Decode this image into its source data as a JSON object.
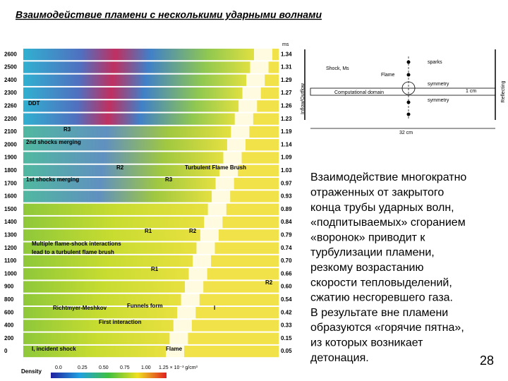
{
  "title": "Взаимодействие пламени с несколькими ударными волнами",
  "figure": {
    "rows": [
      "2600",
      "2500",
      "2400",
      "2300",
      "2260",
      "2200",
      "2100",
      "2000",
      "1900",
      "1800",
      "1700",
      "1600",
      "1500",
      "1400",
      "1300",
      "1200",
      "1100",
      "1000",
      "900",
      "800",
      "600",
      "400",
      "200",
      "0"
    ],
    "time_unit": "ms",
    "times": [
      "1.34",
      "1.31",
      "1.29",
      "1.27",
      "1.26",
      "1.23",
      "1.19",
      "1.14",
      "1.09",
      "1.03",
      "0.97",
      "0.93",
      "0.89",
      "0.84",
      "0.79",
      "0.74",
      "0.70",
      "0.66",
      "0.60",
      "0.54",
      "0.42",
      "0.33",
      "0.15",
      "0.05"
    ],
    "annotations": [
      "DDT",
      "R3",
      "2nd shocks merging",
      "R2",
      "Turbulent Flame Brush",
      "1st shocks merging",
      "R3",
      "R1",
      "R2",
      "Multiple flame-shock interactions",
      "lead to a turbulent flame brush",
      "R1",
      "R2",
      "Richtmyer-Meshkov",
      "Funnels form",
      "I",
      "First interaction",
      "I, incident shock",
      "Flame"
    ],
    "colorbar": {
      "label": "Density",
      "ticks": [
        "0.0",
        "0.25",
        "0.50",
        "0.75",
        "1.00",
        "1.25 × 10⁻³ g/cm³"
      ]
    }
  },
  "diagram": {
    "labels": [
      "sparks",
      "Shock, Ms",
      "Flame",
      "Inflow/Outflow",
      "symmetry",
      "Computational domain",
      "1 cm",
      "symmetry",
      "Reflecting",
      "32 cm"
    ]
  },
  "text": {
    "lines": [
      "Взаимодействие многократно",
      "отраженных от закрытого",
      "конца трубы ударных волн,",
      "«подпитываемых» сгоранием",
      "«воронок» приводит к",
      "турбулизации пламени,",
      "резкому возрастанию",
      "скорости тепловыделений,",
      "сжатию несгоревшего газа.",
      "В результате вне пламени",
      "образуются «горячие пятна»,",
      "из которых возникает",
      "детонация."
    ]
  },
  "page_number": "28"
}
